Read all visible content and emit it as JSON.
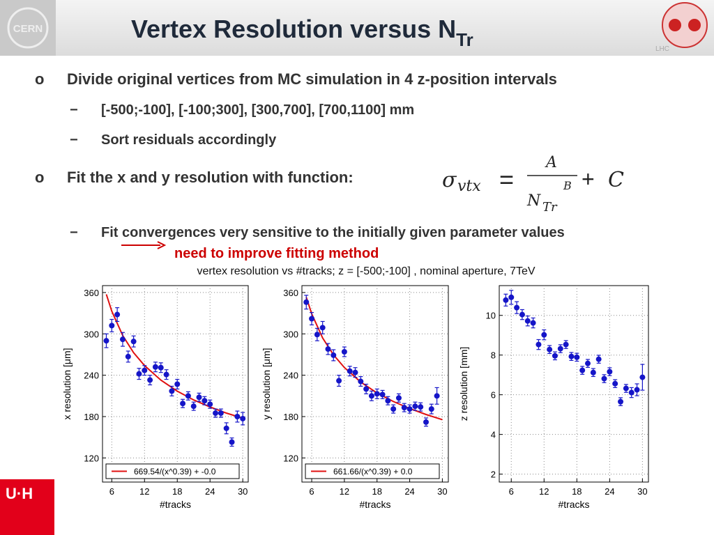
{
  "header": {
    "title": "Vertex Resolution versus N",
    "title_sub": "Tr"
  },
  "logos": {
    "cern": "CERN",
    "lhc": "LHC"
  },
  "bullets": [
    {
      "marker": "o",
      "text": "Divide original vertices from MC simulation in 4 z-position intervals",
      "sub": [
        {
          "marker": "−",
          "text": "[-500;-100], [-100;300], [300,700], [700,1100] mm"
        },
        {
          "marker": "−",
          "text": "Sort residuals accordingly"
        }
      ]
    },
    {
      "marker": "o",
      "text": "Fit the x and y resolution with function:",
      "sub": [
        {
          "marker": "−",
          "text": "Fit convergences very sensitive to the initially given parameter values",
          "note": "need to improve fitting method"
        }
      ]
    }
  ],
  "formula": {
    "sigma": "σ",
    "sigma_sub": "vtx",
    "equals": "=",
    "numerator": "A",
    "denominator": "N",
    "denominator_sub": "Tr",
    "exponent": "B",
    "plus": "+",
    "constant": "C"
  },
  "figure_title": "vertex resolution vs #tracks; z = [-500;-100] , nominal aperture, 7TeV",
  "chart_data": [
    {
      "type": "scatter",
      "ylabel": "x resolution [μm]",
      "xlabel": "#tracks",
      "xlim": [
        4.3,
        31
      ],
      "xticks": [
        6,
        12,
        18,
        24,
        30
      ],
      "ylim": [
        85,
        370
      ],
      "yticks": [
        120,
        180,
        240,
        300,
        360
      ],
      "grid": true,
      "legend": "lower",
      "points": {
        "color": "#1515c8",
        "x": [
          5,
          6,
          7,
          8,
          9,
          10,
          11,
          12,
          13,
          14,
          15,
          16,
          17,
          18,
          19,
          20,
          21,
          22,
          23,
          24,
          25,
          26,
          27,
          28,
          29,
          30
        ],
        "values": [
          290,
          312,
          328,
          292,
          267,
          289,
          242,
          247,
          233,
          252,
          251,
          241,
          217,
          227,
          199,
          210,
          195,
          208,
          203,
          198,
          185,
          185,
          163,
          143,
          180,
          177
        ],
        "errors": [
          10,
          9,
          10,
          10,
          8,
          8,
          8,
          7,
          7,
          7,
          7,
          7,
          7,
          7,
          6,
          6,
          6,
          6,
          6,
          6,
          6,
          6,
          8,
          6,
          8,
          9
        ]
      },
      "fit": {
        "name": "669.54/(x^0.39) + -0.0",
        "color": "#e01010",
        "x": [
          5,
          6,
          8,
          10,
          12,
          15,
          18,
          21,
          24,
          27,
          30
        ],
        "values": [
          357.4,
          332.9,
          297.5,
          272.7,
          254.0,
          232.9,
          216.9,
          204.2,
          193.9,
          185.1,
          177.7
        ]
      }
    },
    {
      "type": "scatter",
      "ylabel": "y resolution [μm]",
      "xlabel": "#tracks",
      "xlim": [
        4.2,
        31.1
      ],
      "xticks": [
        6,
        12,
        18,
        24,
        30
      ],
      "ylim": [
        85,
        370
      ],
      "yticks": [
        120,
        180,
        240,
        300,
        360
      ],
      "grid": true,
      "legend": "lower",
      "points": {
        "color": "#1515c8",
        "x": [
          5,
          6,
          7,
          8,
          9,
          10,
          11,
          12,
          13,
          14,
          15,
          16,
          17,
          18,
          19,
          20,
          21,
          22,
          23,
          24,
          25,
          26,
          27,
          28,
          29
        ],
        "values": [
          346,
          322,
          299,
          309,
          278,
          269,
          232,
          274,
          246,
          244,
          231,
          220,
          210,
          213,
          212,
          203,
          191,
          207,
          193,
          191,
          195,
          194,
          172,
          191,
          210
        ],
        "errors": [
          10,
          9,
          9,
          9,
          8,
          8,
          8,
          7,
          7,
          7,
          7,
          7,
          7,
          7,
          6,
          6,
          6,
          6,
          6,
          6,
          6,
          6,
          6,
          7,
          12
        ]
      },
      "fit": {
        "name": "661.66/(x^0.39) + 0.0",
        "color": "#e01010",
        "x": [
          5,
          6,
          8,
          10,
          12,
          15,
          18,
          21,
          24,
          27,
          30
        ],
        "values": [
          353.2,
          329.0,
          294.0,
          269.5,
          251.1,
          230.1,
          214.3,
          201.8,
          191.6,
          183.0,
          175.6
        ]
      }
    },
    {
      "type": "scatter",
      "ylabel": "z resolution [mm]",
      "xlabel": "#tracks",
      "xlim": [
        3.8,
        31.1
      ],
      "xticks": [
        6,
        12,
        18,
        24,
        30
      ],
      "ylim": [
        1.6,
        11.5
      ],
      "yticks": [
        2,
        4,
        6,
        8,
        10
      ],
      "grid": true,
      "points": {
        "color": "#1515c8",
        "x": [
          5,
          6,
          7,
          8,
          9,
          10,
          11,
          12,
          13,
          14,
          15,
          16,
          17,
          18,
          19,
          20,
          21,
          22,
          23,
          24,
          25,
          26,
          27,
          28,
          29,
          30
        ],
        "values": [
          10.77,
          10.91,
          10.39,
          10.04,
          9.72,
          9.62,
          8.53,
          9.02,
          8.28,
          7.96,
          8.32,
          8.53,
          7.93,
          7.89,
          7.23,
          7.58,
          7.12,
          7.79,
          6.81,
          7.16,
          6.56,
          5.65,
          6.32,
          6.11,
          6.25,
          6.88
        ],
        "errors": [
          0.3,
          0.35,
          0.3,
          0.25,
          0.25,
          0.25,
          0.25,
          0.25,
          0.2,
          0.2,
          0.2,
          0.2,
          0.2,
          0.2,
          0.2,
          0.2,
          0.2,
          0.2,
          0.2,
          0.2,
          0.2,
          0.2,
          0.2,
          0.25,
          0.3,
          0.65
        ]
      }
    }
  ]
}
